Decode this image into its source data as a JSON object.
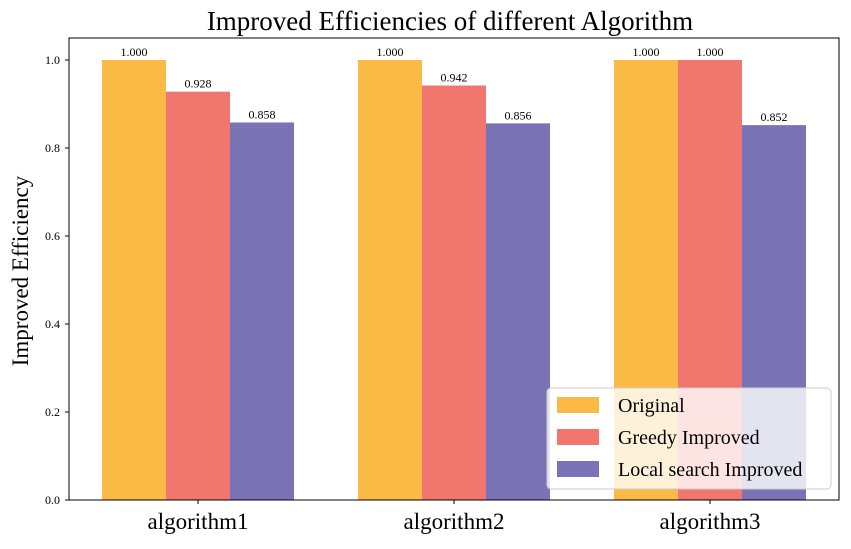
{
  "chart_data": {
    "type": "bar",
    "title": "Improved Efficiencies of different Algorithm",
    "xlabel": "",
    "ylabel": "Improved Efficiency",
    "categories": [
      "algorithm1",
      "algorithm2",
      "algorithm3"
    ],
    "series": [
      {
        "name": "Original",
        "values": [
          1.0,
          1.0,
          1.0
        ],
        "labels": [
          "1.000",
          "1.000",
          "1.000"
        ],
        "color": "#fbb945"
      },
      {
        "name": "Greedy Improved",
        "values": [
          0.928,
          0.942,
          1.0
        ],
        "labels": [
          "0.928",
          "0.942",
          "1.000"
        ],
        "color": "#f1776e"
      },
      {
        "name": "Local search Improved",
        "values": [
          0.858,
          0.856,
          0.852
        ],
        "labels": [
          "0.858",
          "0.856",
          "0.852"
        ],
        "color": "#7a73b5"
      }
    ],
    "ylim": [
      0,
      1.05
    ],
    "yticks": [
      "0.0",
      "0.2",
      "0.4",
      "0.6",
      "0.8",
      "1.0"
    ],
    "grid": false,
    "legend_position": "lower right"
  }
}
